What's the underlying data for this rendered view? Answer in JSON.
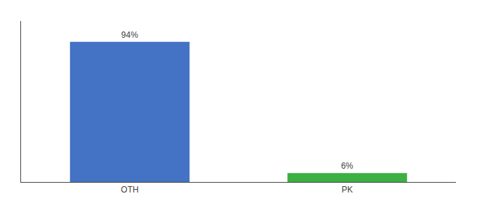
{
  "chart_data": {
    "type": "bar",
    "categories": [
      "OTH",
      "PK"
    ],
    "values": [
      94,
      6
    ],
    "value_labels": [
      "94%",
      "6%"
    ],
    "colors": [
      "#4472c4",
      "#3cb043"
    ],
    "ylim": [
      0,
      108
    ],
    "yticks": [],
    "grid": false,
    "data_labels": true,
    "tick_labels": "x"
  }
}
